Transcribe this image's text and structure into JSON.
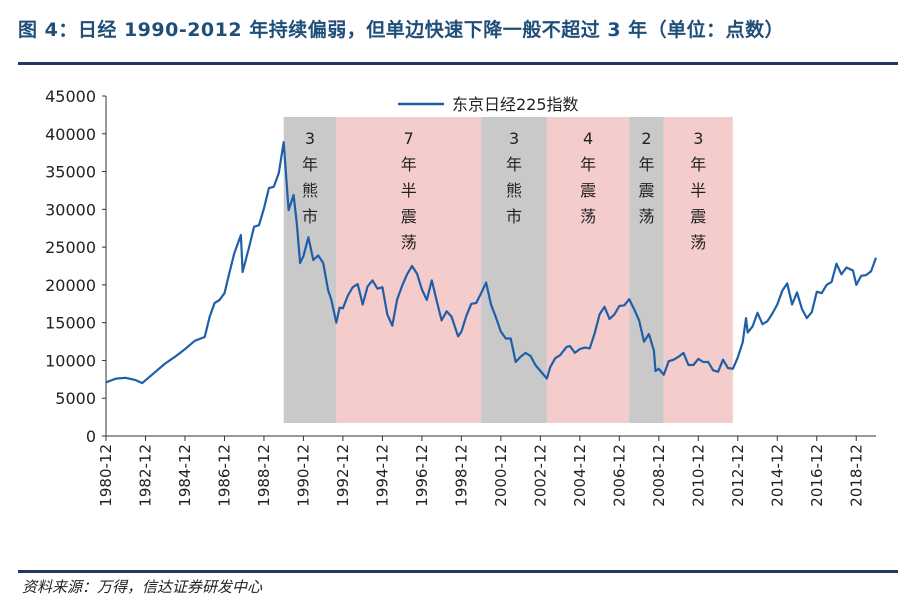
{
  "figure_title": "图 4：日经 1990-2012 年持续偏弱，但单边快速下降一般不超过 3 年（单位：点数）",
  "source": "资料来源：万得，信达证券研发中心",
  "chart_data": {
    "type": "line",
    "title": "",
    "xlabel": "",
    "ylabel": "",
    "ylim": [
      0,
      45000
    ],
    "yticks": [
      0,
      5000,
      10000,
      15000,
      20000,
      25000,
      30000,
      35000,
      40000,
      45000
    ],
    "xlim": [
      "1980-12",
      "2019-12"
    ],
    "xticks": [
      "1980-12",
      "1982-12",
      "1984-12",
      "1986-12",
      "1988-12",
      "1990-12",
      "1992-12",
      "1994-12",
      "1996-12",
      "1998-12",
      "2000-12",
      "2002-12",
      "2004-12",
      "2006-12",
      "2008-12",
      "2010-12",
      "2012-12",
      "2014-12",
      "2016-12",
      "2018-12"
    ],
    "grid": false,
    "legend_position": "top-center",
    "colors": {
      "line": "#1f5fa8",
      "bear_band": "#c9c9c9",
      "range_band": "#f4cccc"
    },
    "series": [
      {
        "name": "东京日经225指数",
        "x": [
          "1980-12",
          "1981-06",
          "1981-12",
          "1982-06",
          "1982-10",
          "1983-06",
          "1983-12",
          "1984-06",
          "1984-12",
          "1985-06",
          "1985-12",
          "1986-03",
          "1986-06",
          "1986-09",
          "1986-12",
          "1987-03",
          "1987-06",
          "1987-10",
          "1987-11",
          "1988-03",
          "1988-06",
          "1988-09",
          "1988-12",
          "1989-03",
          "1989-06",
          "1989-09",
          "1989-12",
          "1990-03",
          "1990-06",
          "1990-08",
          "1990-10",
          "1990-12",
          "1991-03",
          "1991-06",
          "1991-09",
          "1991-12",
          "1992-03",
          "1992-05",
          "1992-08",
          "1992-10",
          "1992-12",
          "1993-03",
          "1993-06",
          "1993-09",
          "1993-12",
          "1994-03",
          "1994-06",
          "1994-09",
          "1994-12",
          "1995-03",
          "1995-06",
          "1995-09",
          "1995-12",
          "1996-03",
          "1996-06",
          "1996-09",
          "1996-12",
          "1997-03",
          "1997-06",
          "1997-09",
          "1997-12",
          "1998-03",
          "1998-06",
          "1998-10",
          "1998-12",
          "1999-03",
          "1999-06",
          "1999-09",
          "1999-12",
          "2000-03",
          "2000-06",
          "2000-09",
          "2000-12",
          "2001-03",
          "2001-06",
          "2001-09",
          "2001-12",
          "2002-03",
          "2002-06",
          "2002-09",
          "2002-12",
          "2003-04",
          "2003-06",
          "2003-09",
          "2003-12",
          "2004-04",
          "2004-06",
          "2004-09",
          "2004-12",
          "2005-03",
          "2005-06",
          "2005-09",
          "2005-12",
          "2006-03",
          "2006-06",
          "2006-09",
          "2006-12",
          "2007-03",
          "2007-06",
          "2007-09",
          "2007-12",
          "2008-03",
          "2008-06",
          "2008-09",
          "2008-10",
          "2008-12",
          "2009-03",
          "2009-06",
          "2009-09",
          "2009-12",
          "2010-03",
          "2010-06",
          "2010-09",
          "2010-12",
          "2011-03",
          "2011-06",
          "2011-09",
          "2011-12",
          "2012-03",
          "2012-06",
          "2012-09",
          "2012-12",
          "2013-03",
          "2013-05",
          "2013-06",
          "2013-09",
          "2013-12",
          "2014-03",
          "2014-06",
          "2014-09",
          "2014-12",
          "2015-03",
          "2015-06",
          "2015-09",
          "2015-12",
          "2016-03",
          "2016-06",
          "2016-09",
          "2016-12",
          "2017-03",
          "2017-06",
          "2017-09",
          "2017-12",
          "2018-03",
          "2018-06",
          "2018-10",
          "2018-12",
          "2019-03",
          "2019-06",
          "2019-09",
          "2019-12"
        ],
        "values": [
          7100,
          7600,
          7700,
          7400,
          7000,
          8500,
          9600,
          10500,
          11500,
          12600,
          13100,
          15800,
          17600,
          18000,
          18900,
          21600,
          24200,
          26600,
          21700,
          25000,
          27700,
          27900,
          30100,
          32800,
          33000,
          34800,
          38900,
          29900,
          31900,
          28000,
          22900,
          23800,
          26300,
          23300,
          23900,
          22900,
          19300,
          18000,
          15000,
          17000,
          16900,
          18600,
          19700,
          20100,
          17400,
          19800,
          20600,
          19500,
          19700,
          16100,
          14600,
          18100,
          19900,
          21400,
          22500,
          21500,
          19400,
          18000,
          20600,
          17900,
          15300,
          16500,
          15800,
          13200,
          13800,
          15900,
          17500,
          17600,
          18900,
          20300,
          17400,
          15700,
          13800,
          12900,
          12900,
          9800,
          10500,
          11000,
          10600,
          9400,
          8600,
          7600,
          9100,
          10300,
          10700,
          11800,
          11900,
          11000,
          11500,
          11700,
          11600,
          13600,
          16100,
          17100,
          15500,
          16100,
          17200,
          17300,
          18100,
          16800,
          15300,
          12500,
          13500,
          11300,
          8600,
          8900,
          8100,
          9900,
          10100,
          10500,
          11000,
          9400,
          9400,
          10200,
          9800,
          9800,
          8700,
          8500,
          10100,
          9000,
          8900,
          10400,
          12400,
          15600,
          13700,
          14500,
          16300,
          14800,
          15200,
          16200,
          17400,
          19200,
          20200,
          17400,
          19000,
          16800,
          15600,
          16400,
          19100,
          18900,
          20000,
          20400,
          22800,
          21400,
          22300,
          21900,
          20000,
          21200,
          21300,
          21800,
          23600
        ]
      }
    ],
    "bands": [
      {
        "start": "1989-12",
        "end": "1992-08",
        "type": "bear",
        "chars": [
          "3",
          "年",
          "熊",
          "市"
        ]
      },
      {
        "start": "1992-08",
        "end": "1999-12",
        "type": "range",
        "chars": [
          "7",
          "年",
          "半",
          "震",
          "荡"
        ]
      },
      {
        "start": "1999-12",
        "end": "2003-04",
        "type": "bear",
        "chars": [
          "3",
          "年",
          "熊",
          "市"
        ]
      },
      {
        "start": "2003-04",
        "end": "2007-06",
        "type": "range",
        "chars": [
          "4",
          "年",
          "震",
          "荡"
        ]
      },
      {
        "start": "2007-06",
        "end": "2009-03",
        "type": "bear",
        "chars": [
          "2",
          "年",
          "震",
          "荡"
        ]
      },
      {
        "start": "2009-03",
        "end": "2012-09",
        "type": "range",
        "chars": [
          "3",
          "年",
          "半",
          "震",
          "荡"
        ]
      }
    ]
  }
}
